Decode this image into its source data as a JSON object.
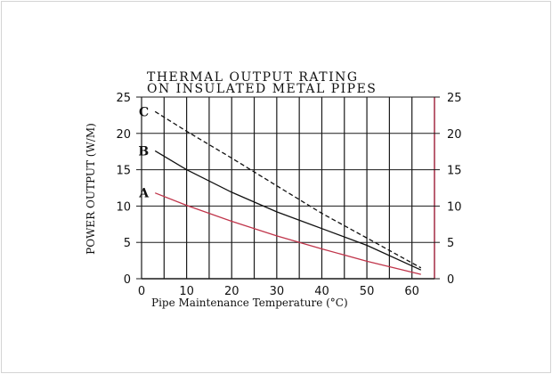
{
  "chart_data": {
    "type": "line",
    "title": "THERMAL OUTPUT RATING",
    "subtitle": "ON INSULATED METAL PIPES",
    "xlabel": "Pipe Maintenance Temperature (°C)",
    "ylabel": "POWER OUTPUT (W/M)",
    "xlim": [
      0,
      65
    ],
    "ylim": [
      0,
      25
    ],
    "x_ticks": [
      0,
      10,
      20,
      30,
      40,
      50,
      60
    ],
    "y_ticks": [
      0,
      5,
      10,
      15,
      20,
      25
    ],
    "grid": true,
    "secondary_y_axis": true,
    "series": [
      {
        "name": "A",
        "color": "#c0344a",
        "style": "solid",
        "x": [
          3,
          10,
          20,
          30,
          40,
          50,
          62
        ],
        "y": [
          11.8,
          10.1,
          7.9,
          5.9,
          4.1,
          2.4,
          0.6
        ]
      },
      {
        "name": "B",
        "color": "#111111",
        "style": "solid",
        "x": [
          3,
          10,
          20,
          30,
          40,
          50,
          62
        ],
        "y": [
          17.6,
          15.0,
          11.9,
          9.2,
          6.9,
          4.6,
          1.2
        ]
      },
      {
        "name": "C",
        "color": "#111111",
        "style": "dashed",
        "x": [
          3,
          10,
          20,
          30,
          40,
          50,
          62
        ],
        "y": [
          23.0,
          20.3,
          16.6,
          12.8,
          9.0,
          5.6,
          1.5
        ]
      }
    ]
  }
}
